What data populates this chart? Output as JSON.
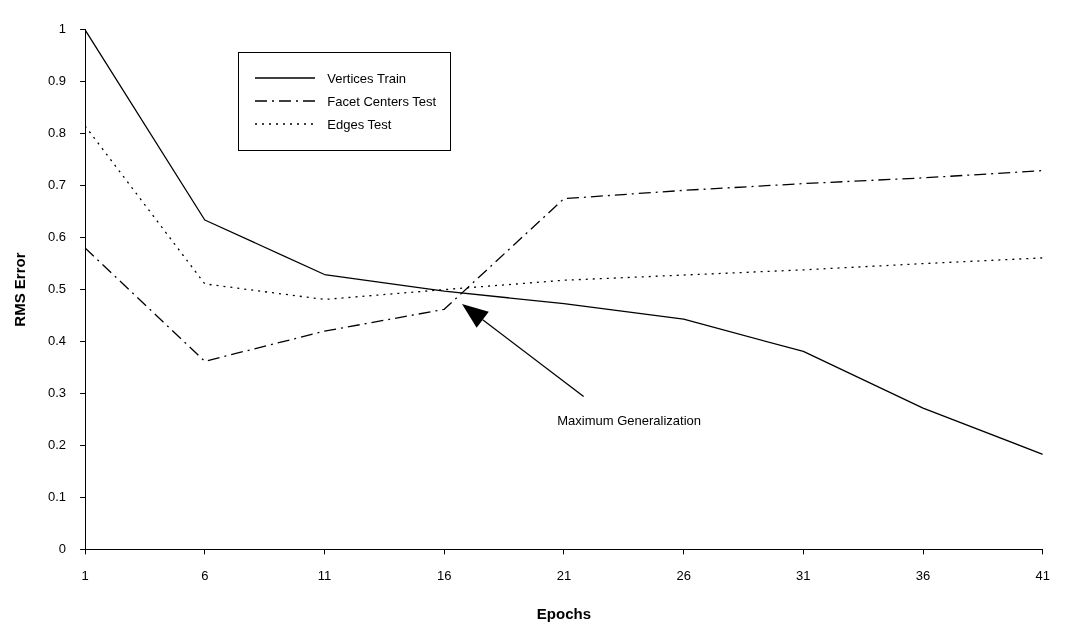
{
  "chart_data": {
    "type": "line",
    "xlabel": "Epochs",
    "ylabel": "RMS Error",
    "x": [
      1,
      6,
      11,
      16,
      21,
      26,
      31,
      36,
      41
    ],
    "series": [
      {
        "name": "Vertices Train",
        "color": "#000000",
        "line_style": "solid",
        "values": [
          1.0,
          0.634,
          0.529,
          0.497,
          0.473,
          0.443,
          0.381,
          0.272,
          0.183
        ]
      },
      {
        "name": "Facet Centers Test",
        "color": "#000000",
        "line_style": "dashed",
        "values": [
          0.58,
          0.362,
          0.42,
          0.462,
          0.675,
          0.691,
          0.704,
          0.715,
          0.729
        ]
      },
      {
        "name": "Edges Test",
        "color": "#000000",
        "line_style": "dotted",
        "values": [
          0.815,
          0.511,
          0.481,
          0.5,
          0.518,
          0.528,
          0.538,
          0.55,
          0.561
        ]
      }
    ],
    "xlim": [
      1,
      41
    ],
    "xticks": [
      1,
      6,
      11,
      16,
      21,
      26,
      31,
      36,
      41
    ],
    "ylim": [
      0,
      1
    ],
    "yticks": [
      0,
      0.1,
      0.2,
      0.3,
      0.4,
      0.5,
      0.6,
      0.7,
      0.8,
      0.9,
      1
    ],
    "grid": false,
    "legend": "top left",
    "marker": "none",
    "annotations": [
      "Maximum Generalization"
    ]
  }
}
